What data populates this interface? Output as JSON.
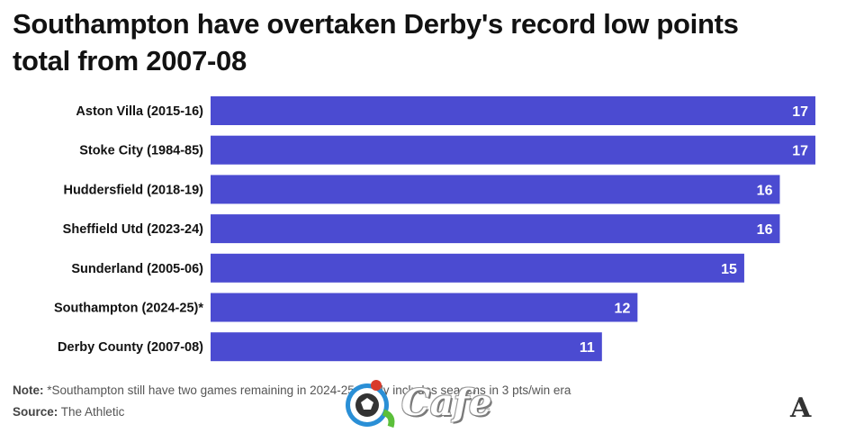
{
  "title": "Southampton have overtaken Derby's record low points total from 2007-08",
  "note_label": "Note:",
  "note_text": "*Southampton still have two games remaining in 2024-25 | Only includes seasons in 3 pts/win era",
  "source_label": "Source:",
  "source_text": "The Athletic",
  "brand_logo": "A",
  "watermark": {
    "text": "Cafe",
    "icon": "football-icon"
  },
  "colors": {
    "bar": "#4b4bd1",
    "bar_label": "#ffffff",
    "text": "#121212"
  },
  "chart_data": {
    "type": "bar",
    "orientation": "horizontal",
    "categories": [
      "Aston Villa (2015-16)",
      "Stoke City (1984-85)",
      "Huddersfield (2018-19)",
      "Sheffield Utd (2023-24)",
      "Sunderland (2005-06)",
      "Southampton (2024-25)*",
      "Derby County (2007-08)"
    ],
    "values": [
      17,
      17,
      16,
      16,
      15,
      12,
      11
    ],
    "xlim": [
      0,
      17
    ],
    "grid": false,
    "legend": "none",
    "data_labels": true
  }
}
